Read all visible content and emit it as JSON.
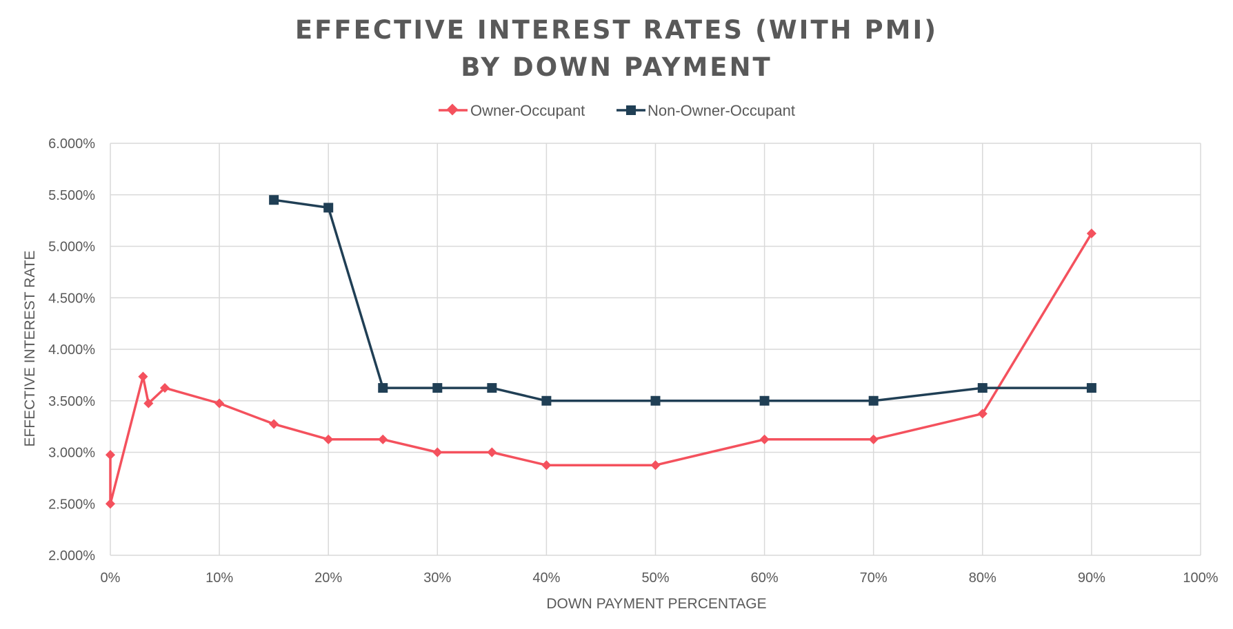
{
  "chart_data": {
    "type": "line",
    "title_lines": [
      "EFFECTIVE INTEREST RATES (WITH PMI)",
      "BY DOWN PAYMENT"
    ],
    "xlabel": "DOWN PAYMENT PERCENTAGE",
    "ylabel": "EFFECTIVE INTEREST RATE",
    "xlim": [
      0,
      1
    ],
    "ylim": [
      0.02,
      0.06
    ],
    "x_ticks": [
      0,
      0.1,
      0.2,
      0.3,
      0.4,
      0.5,
      0.6,
      0.7,
      0.8,
      0.9,
      1.0
    ],
    "x_tick_labels": [
      "0%",
      "10%",
      "20%",
      "30%",
      "40%",
      "50%",
      "60%",
      "70%",
      "80%",
      "90%",
      "100%"
    ],
    "y_ticks": [
      0.02,
      0.025,
      0.03,
      0.035,
      0.04,
      0.045,
      0.05,
      0.055,
      0.06
    ],
    "y_tick_labels": [
      "2.000%",
      "2.500%",
      "3.000%",
      "3.500%",
      "4.000%",
      "4.500%",
      "5.000%",
      "5.500%",
      "6.000%"
    ],
    "grid": true,
    "legend_position": "top-center",
    "series": [
      {
        "name": "Owner-Occupant",
        "color": "#f4515d",
        "marker": "diamond",
        "x": [
          0,
          0,
          0.03,
          0.035,
          0.05,
          0.1,
          0.15,
          0.2,
          0.25,
          0.3,
          0.35,
          0.4,
          0.5,
          0.6,
          0.7,
          0.8,
          0.9
        ],
        "y": [
          0.02975,
          0.025,
          0.03735,
          0.03475,
          0.03625,
          0.03475,
          0.03275,
          0.03125,
          0.03125,
          0.03,
          0.03,
          0.02875,
          0.02875,
          0.03125,
          0.03125,
          0.03375,
          0.05125
        ]
      },
      {
        "name": "Non-Owner-Occupant",
        "color": "#203f55",
        "marker": "square",
        "x": [
          0.15,
          0.2,
          0.25,
          0.3,
          0.35,
          0.4,
          0.5,
          0.6,
          0.7,
          0.8,
          0.9
        ],
        "y": [
          0.0545,
          0.05375,
          0.03625,
          0.03625,
          0.03625,
          0.035,
          0.035,
          0.035,
          0.035,
          0.03625,
          0.03625
        ]
      }
    ]
  }
}
